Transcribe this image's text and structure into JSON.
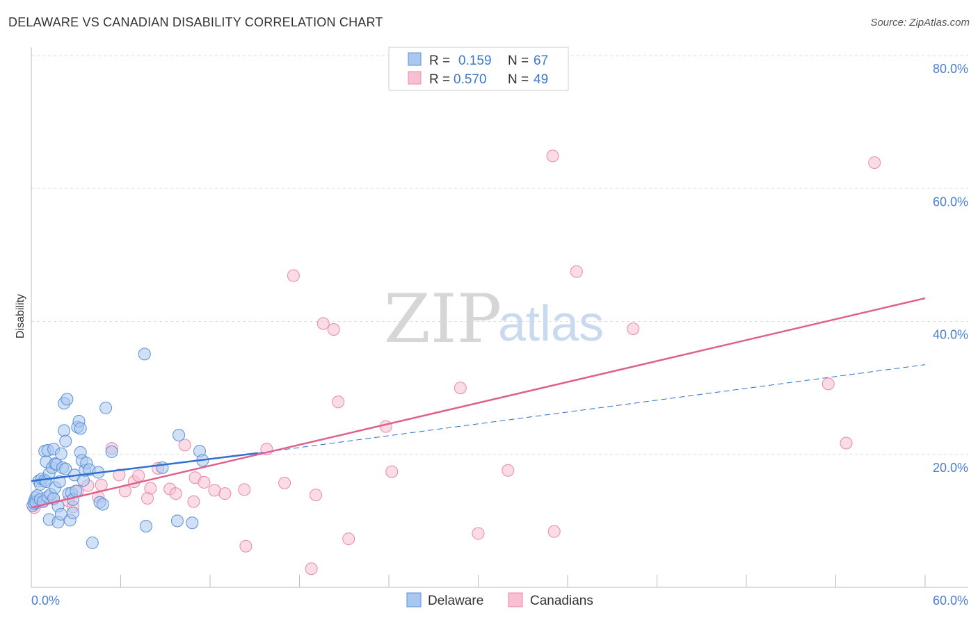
{
  "title": "DELAWARE VS CANADIAN DISABILITY CORRELATION CHART",
  "source": "Source: ZipAtlas.com",
  "watermark": {
    "part1": "ZIP",
    "part2": "atlas"
  },
  "colors": {
    "delaware_fill": "#a9c8f0",
    "delaware_stroke": "#5a8fd8",
    "delaware_line": "#2f6fcf",
    "canadians_fill": "#f7c0d2",
    "canadians_stroke": "#e68aa8",
    "canadians_line": "#e0608d",
    "tick_text": "#4a7fd0",
    "grid": "#dddddd"
  },
  "legend": {
    "r_label": "R =",
    "n_label": "N =",
    "rows": [
      {
        "series": "Delaware",
        "r": "0.159",
        "n": "67"
      },
      {
        "series": "Canadians",
        "r": "0.570",
        "n": "49"
      }
    ]
  },
  "bottom_legend": [
    "Delaware",
    "Canadians"
  ],
  "chart_data": {
    "type": "scatter",
    "title": "DELAWARE VS CANADIAN DISABILITY CORRELATION CHART",
    "xlabel": "",
    "ylabel": "Disability",
    "xlim": [
      0,
      60
    ],
    "ylim": [
      0,
      80
    ],
    "x_tick_labels": [
      "0.0%",
      "60.0%"
    ],
    "y_ticks": [
      20,
      40,
      60,
      80
    ],
    "y_tick_labels": [
      "20.0%",
      "40.0%",
      "60.0%",
      "80.0%"
    ],
    "grid": true,
    "legend_position": "top-center",
    "series": [
      {
        "name": "Delaware",
        "trend": {
          "x1": 0,
          "y1": 16.0,
          "x2": 15.2,
          "y2": 20.2,
          "dashed_to_x": 60,
          "dashed_to_y": 33.5
        },
        "points": [
          [
            0.1,
            12.3
          ],
          [
            0.2,
            13.0
          ],
          [
            0.2,
            12.6
          ],
          [
            0.3,
            13.5
          ],
          [
            0.3,
            12.8
          ],
          [
            0.4,
            13.8
          ],
          [
            0.5,
            16.0
          ],
          [
            0.6,
            15.5
          ],
          [
            0.6,
            13.2
          ],
          [
            0.7,
            16.3
          ],
          [
            0.8,
            12.9
          ],
          [
            0.9,
            20.5
          ],
          [
            0.9,
            16.1
          ],
          [
            1.0,
            18.9
          ],
          [
            1.0,
            15.9
          ],
          [
            1.1,
            13.6
          ],
          [
            1.1,
            20.6
          ],
          [
            1.2,
            17.1
          ],
          [
            1.2,
            10.2
          ],
          [
            1.3,
            14.0
          ],
          [
            1.4,
            18.0
          ],
          [
            1.5,
            13.4
          ],
          [
            1.5,
            20.8
          ],
          [
            1.6,
            18.6
          ],
          [
            1.6,
            15.0
          ],
          [
            1.7,
            18.5
          ],
          [
            1.8,
            9.8
          ],
          [
            1.8,
            12.2
          ],
          [
            1.9,
            15.9
          ],
          [
            2.0,
            11.0
          ],
          [
            2.0,
            20.1
          ],
          [
            2.1,
            18.0
          ],
          [
            2.2,
            27.7
          ],
          [
            2.2,
            23.6
          ],
          [
            2.3,
            17.8
          ],
          [
            2.3,
            22.0
          ],
          [
            2.4,
            28.3
          ],
          [
            2.5,
            14.1
          ],
          [
            2.6,
            10.1
          ],
          [
            2.7,
            14.2
          ],
          [
            2.8,
            13.2
          ],
          [
            2.8,
            11.2
          ],
          [
            2.9,
            16.9
          ],
          [
            3.0,
            14.5
          ],
          [
            3.1,
            24.1
          ],
          [
            3.2,
            25.0
          ],
          [
            3.3,
            20.3
          ],
          [
            3.3,
            23.9
          ],
          [
            3.4,
            19.1
          ],
          [
            3.5,
            16.1
          ],
          [
            3.6,
            17.6
          ],
          [
            3.7,
            18.7
          ],
          [
            3.9,
            17.7
          ],
          [
            4.1,
            6.7
          ],
          [
            4.5,
            17.3
          ],
          [
            4.6,
            12.8
          ],
          [
            4.8,
            12.5
          ],
          [
            5.0,
            27.0
          ],
          [
            5.4,
            20.4
          ],
          [
            7.6,
            35.1
          ],
          [
            7.7,
            9.2
          ],
          [
            8.8,
            18.0
          ],
          [
            9.8,
            10.0
          ],
          [
            9.9,
            22.9
          ],
          [
            11.3,
            20.5
          ],
          [
            11.5,
            19.1
          ],
          [
            10.8,
            9.7
          ]
        ]
      },
      {
        "name": "Canadians",
        "trend": {
          "x1": 0,
          "y1": 12.0,
          "x2": 60,
          "y2": 43.5
        },
        "points": [
          [
            0.2,
            12.0
          ],
          [
            0.5,
            12.8
          ],
          [
            0.8,
            13.0
          ],
          [
            1.5,
            13.3
          ],
          [
            2.5,
            13.0
          ],
          [
            2.8,
            12.1
          ],
          [
            3.1,
            14.5
          ],
          [
            3.8,
            15.3
          ],
          [
            4.5,
            13.6
          ],
          [
            4.7,
            15.4
          ],
          [
            5.4,
            20.9
          ],
          [
            5.9,
            16.9
          ],
          [
            6.3,
            14.5
          ],
          [
            6.9,
            15.9
          ],
          [
            7.2,
            16.8
          ],
          [
            7.8,
            13.4
          ],
          [
            8.0,
            14.9
          ],
          [
            8.5,
            17.9
          ],
          [
            9.3,
            14.8
          ],
          [
            9.7,
            14.1
          ],
          [
            10.3,
            21.4
          ],
          [
            10.9,
            12.9
          ],
          [
            11.0,
            16.5
          ],
          [
            11.6,
            15.8
          ],
          [
            12.3,
            14.6
          ],
          [
            13.0,
            14.1
          ],
          [
            14.3,
            14.7
          ],
          [
            14.4,
            6.2
          ],
          [
            15.8,
            20.8
          ],
          [
            17.0,
            15.7
          ],
          [
            17.6,
            46.9
          ],
          [
            18.8,
            2.8
          ],
          [
            19.1,
            13.9
          ],
          [
            19.6,
            39.7
          ],
          [
            20.3,
            38.8
          ],
          [
            20.6,
            27.9
          ],
          [
            21.3,
            7.3
          ],
          [
            23.8,
            24.2
          ],
          [
            24.2,
            17.4
          ],
          [
            28.8,
            30.0
          ],
          [
            30.0,
            8.1
          ],
          [
            32.0,
            17.6
          ],
          [
            35.1,
            8.4
          ],
          [
            35.0,
            64.9
          ],
          [
            36.6,
            47.5
          ],
          [
            40.4,
            38.9
          ],
          [
            53.5,
            30.6
          ],
          [
            54.7,
            21.7
          ],
          [
            56.6,
            63.9
          ]
        ]
      }
    ]
  }
}
